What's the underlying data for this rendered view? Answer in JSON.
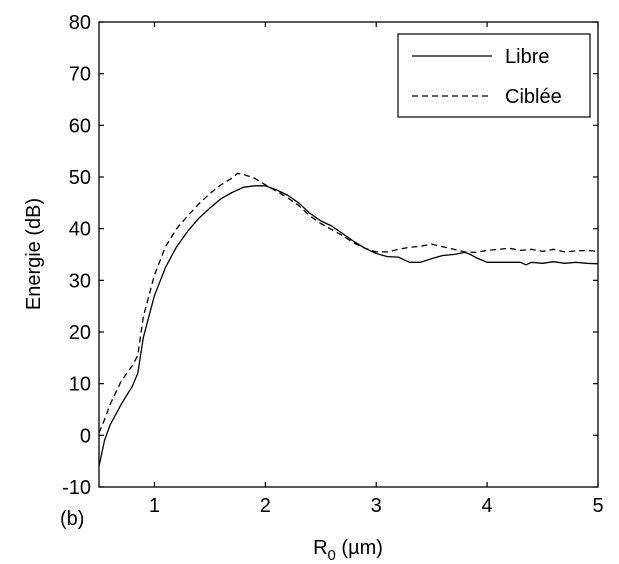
{
  "chart_data": {
    "type": "line",
    "panel_label": "(b)",
    "xlabel": {
      "main": "R",
      "sub": "0",
      "unit": " (µm)"
    },
    "ylabel": "Energie (dB)",
    "xlim": [
      0.5,
      5
    ],
    "ylim": [
      -10,
      80
    ],
    "xticks": [
      1,
      2,
      3,
      4,
      5
    ],
    "yticks": [
      -10,
      0,
      10,
      20,
      30,
      40,
      50,
      60,
      70,
      80
    ],
    "grid": false,
    "legend_position": "top-right",
    "series": [
      {
        "name": "Libre",
        "style": "solid",
        "color": "#000000",
        "x": [
          0.5,
          0.55,
          0.6,
          0.7,
          0.8,
          0.85,
          0.9,
          1.0,
          1.1,
          1.2,
          1.3,
          1.4,
          1.5,
          1.6,
          1.7,
          1.8,
          1.9,
          2.0,
          2.1,
          2.2,
          2.3,
          2.4,
          2.5,
          2.6,
          2.7,
          2.8,
          2.9,
          3.0,
          3.1,
          3.2,
          3.3,
          3.4,
          3.5,
          3.6,
          3.7,
          3.8,
          3.85,
          3.9,
          4.0,
          4.1,
          4.2,
          4.3,
          4.35,
          4.4,
          4.5,
          4.6,
          4.7,
          4.8,
          4.9,
          5.0
        ],
        "y": [
          -6,
          -1,
          2,
          6,
          9.5,
          12,
          19,
          27,
          32.5,
          36.5,
          39.5,
          42,
          44,
          45.8,
          47,
          48,
          48.3,
          48.3,
          47.5,
          46.5,
          45,
          43,
          41.5,
          40.5,
          39,
          37.5,
          36.2,
          35.2,
          34.6,
          34.5,
          33.5,
          33.5,
          34.2,
          34.8,
          35,
          35.4,
          35,
          34.4,
          33.5,
          33.5,
          33.5,
          33.5,
          33,
          33.5,
          33.3,
          33.6,
          33.3,
          33.5,
          33.3,
          33.2
        ]
      },
      {
        "name": "Ciblée",
        "style": "dashed",
        "color": "#000000",
        "x": [
          0.5,
          0.55,
          0.6,
          0.7,
          0.8,
          0.85,
          0.9,
          1.0,
          1.1,
          1.2,
          1.3,
          1.4,
          1.5,
          1.6,
          1.7,
          1.75,
          1.8,
          1.9,
          2.0,
          2.1,
          2.2,
          2.3,
          2.4,
          2.5,
          2.6,
          2.7,
          2.8,
          2.9,
          3.0,
          3.1,
          3.2,
          3.3,
          3.4,
          3.5,
          3.6,
          3.7,
          3.8,
          3.9,
          4.0,
          4.1,
          4.2,
          4.3,
          4.4,
          4.5,
          4.6,
          4.7,
          4.8,
          4.9,
          5.0
        ],
        "y": [
          0.5,
          3,
          6,
          10.5,
          13.5,
          15.5,
          23,
          31,
          36.5,
          40,
          42.5,
          44.8,
          46.8,
          48.5,
          49.8,
          50.7,
          50.5,
          49.8,
          48.5,
          47.3,
          46,
          44.5,
          42.5,
          41,
          39.8,
          38.6,
          37.2,
          36.2,
          35.5,
          35.5,
          36,
          36.4,
          36.6,
          37,
          36.5,
          36,
          35.5,
          35.4,
          35.8,
          36,
          36.2,
          35.8,
          36,
          35.6,
          36,
          35.5,
          35.7,
          35.8,
          35.6
        ]
      }
    ]
  }
}
